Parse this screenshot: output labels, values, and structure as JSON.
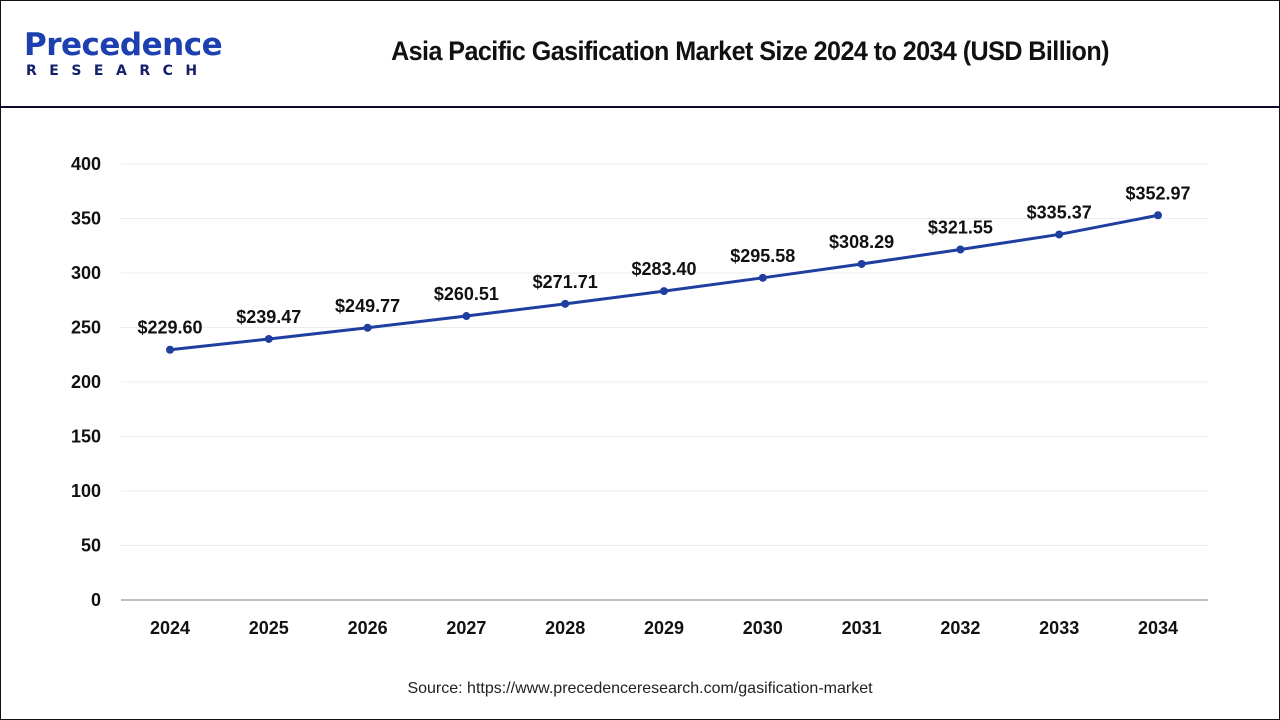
{
  "header": {
    "logo_top": "Precedence",
    "logo_bottom": "RESEARCH",
    "title": "Asia Pacific Gasification Market Size 2024 to 2034 (USD Billion)"
  },
  "footer": {
    "source": "Source: https://www.precedenceresearch.com/gasification-market"
  },
  "colors": {
    "line": "#1f3fa0",
    "marker": "#1f3fa0",
    "grid": "#ececec",
    "axis": "#bdbdbd",
    "header_border": "#0b0b2a",
    "logo_dark": "#14206b",
    "logo_blue": "#1d4fd0"
  },
  "chart_data": {
    "type": "line",
    "title": "Asia Pacific Gasification Market Size 2024 to 2034 (USD Billion)",
    "xlabel": "",
    "ylabel": "",
    "categories": [
      "2024",
      "2025",
      "2026",
      "2027",
      "2028",
      "2029",
      "2030",
      "2031",
      "2032",
      "2033",
      "2034"
    ],
    "series": [
      {
        "name": "Market Size (USD Billion)",
        "values": [
          229.6,
          239.47,
          249.77,
          260.51,
          271.71,
          283.4,
          295.58,
          308.29,
          321.55,
          335.37,
          352.97
        ],
        "labels": [
          "$229.60",
          "$239.47",
          "$249.77",
          "$260.51",
          "$271.71",
          "$283.40",
          "$295.58",
          "$308.29",
          "$321.55",
          "$335.37",
          "$352.97"
        ]
      }
    ],
    "ylim": [
      0,
      400
    ],
    "yticks": [
      0,
      50,
      100,
      150,
      200,
      250,
      300,
      350,
      400
    ],
    "grid": true,
    "legend": "none"
  }
}
